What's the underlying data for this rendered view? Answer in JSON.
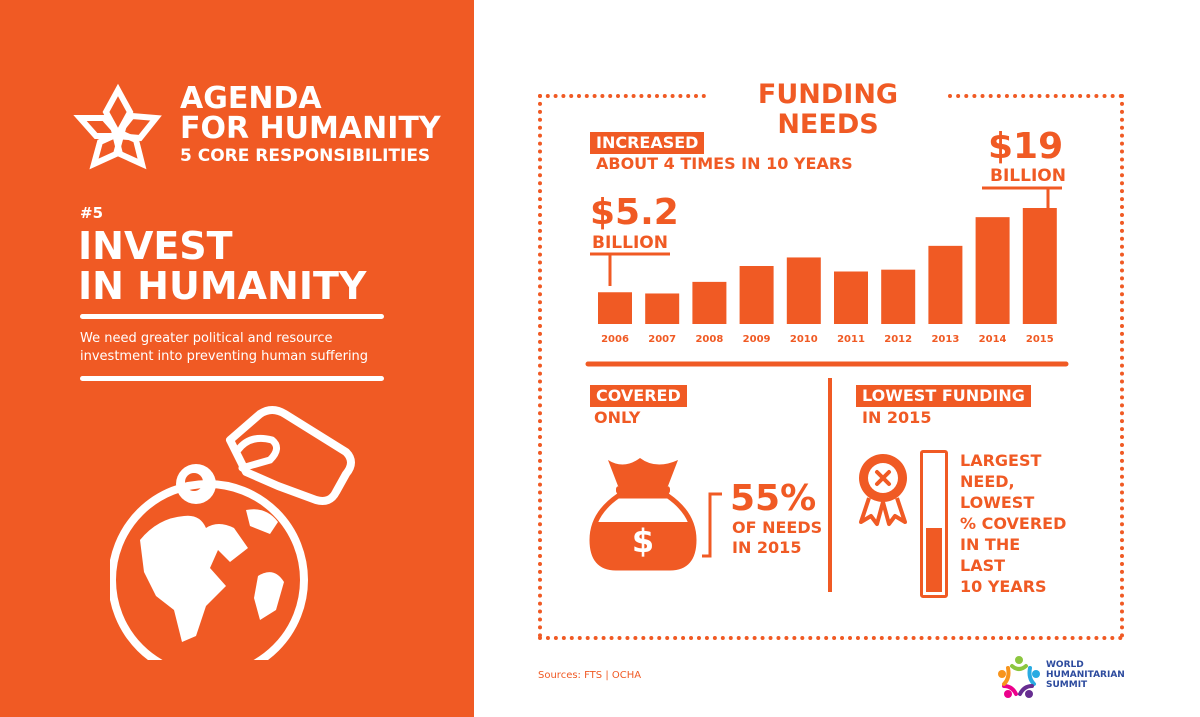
{
  "brand": {
    "title_line1": "AGENDA",
    "title_line2": "FOR HUMANITY",
    "subtitle": "5 CORE RESPONSIBILITIES"
  },
  "section": {
    "number": "#5",
    "heading_line1": "INVEST",
    "heading_line2": "IN HUMANITY",
    "description_line1": "We need greater political and resource",
    "description_line2": "investment into preventing human suffering"
  },
  "funding": {
    "title": "FUNDING NEEDS",
    "increased_label": "INCREASED",
    "increased_text": "ABOUT 4 TIMES IN 10 YEARS",
    "start_value": "$5.2",
    "start_unit": "BILLION",
    "end_value": "$19",
    "end_unit": "BILLION"
  },
  "chart_data": {
    "type": "bar",
    "categories": [
      "2006",
      "2007",
      "2008",
      "2009",
      "2010",
      "2011",
      "2012",
      "2013",
      "2014",
      "2015"
    ],
    "values": [
      5.2,
      5.0,
      6.9,
      9.5,
      10.9,
      8.6,
      8.9,
      12.8,
      17.5,
      19
    ]
  },
  "covered": {
    "label": "COVERED",
    "sub": "ONLY",
    "percent": "55%",
    "line1": "OF NEEDS",
    "line2": "IN 2015",
    "value_fraction": 0.55
  },
  "lowest": {
    "label": "LOWEST FUNDING",
    "sub": "IN 2015",
    "lines": [
      "LARGEST",
      "NEED,",
      "LOWEST",
      "% COVERED",
      "IN THE",
      "LAST",
      "10 YEARS"
    ],
    "fill_fraction": 0.45
  },
  "footer": {
    "sources": "Sources: FTS | OCHA",
    "logo_line1": "WORLD",
    "logo_line2": "HUMANITARIAN",
    "logo_line3": "SUMMIT"
  },
  "colors": {
    "accent": "#F05A24",
    "logo_blue": "#2D4B9E"
  }
}
